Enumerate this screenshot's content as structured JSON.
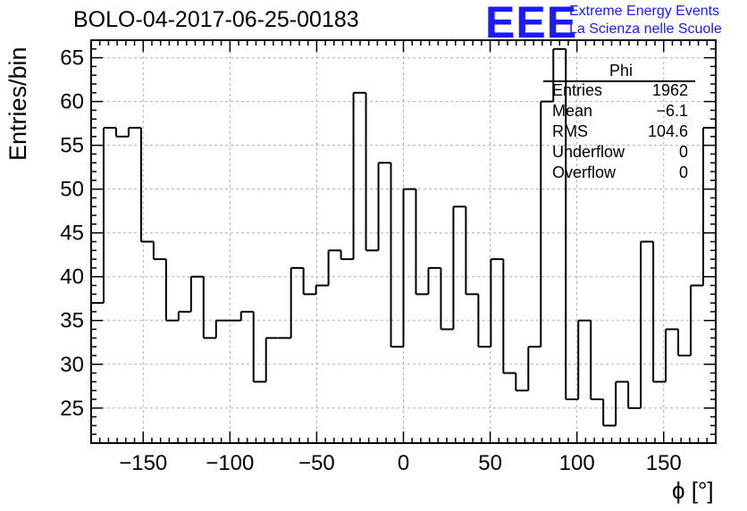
{
  "title": "BOLO-04-2017-06-25-00183",
  "logo": {
    "mark": "EEE",
    "line1": "Extreme Energy Events",
    "line2": "La Scienza nelle Scuole"
  },
  "stats": {
    "name": "Phi",
    "rows": [
      {
        "key": "Entries",
        "value": "1962"
      },
      {
        "key": "Mean",
        "value": "−6.1"
      },
      {
        "key": "RMS",
        "value": "104.6"
      },
      {
        "key": "Underflow",
        "value": "0"
      },
      {
        "key": "Overflow",
        "value": "0"
      }
    ]
  },
  "chart_data": {
    "type": "histogram",
    "title": "BOLO-04-2017-06-25-00183",
    "xlabel": "ϕ [°]",
    "ylabel": "Entries/bin",
    "xlim": [
      -180,
      180
    ],
    "ylim": [
      21,
      67
    ],
    "bin_width": 7.2,
    "x_ticks": [
      -150,
      -100,
      -50,
      0,
      50,
      100,
      150
    ],
    "x_tick_labels": [
      "−150",
      "−100",
      "−50",
      "0",
      "50",
      "100",
      "150"
    ],
    "y_ticks": [
      25,
      30,
      35,
      40,
      45,
      50,
      55,
      60,
      65
    ],
    "y_tick_labels": [
      "25",
      "30",
      "35",
      "40",
      "45",
      "50",
      "55",
      "60",
      "65"
    ],
    "grid": true,
    "values": [
      37,
      57,
      56,
      57,
      44,
      42,
      35,
      36,
      40,
      33,
      35,
      35,
      36,
      28,
      33,
      33,
      41,
      38,
      39,
      43,
      42,
      61,
      43,
      53,
      32,
      50,
      38,
      41,
      34,
      48,
      38,
      32,
      42,
      29,
      27,
      32,
      60,
      66,
      26,
      35,
      26,
      23,
      28,
      25,
      44,
      28,
      34,
      31,
      39,
      57
    ]
  }
}
